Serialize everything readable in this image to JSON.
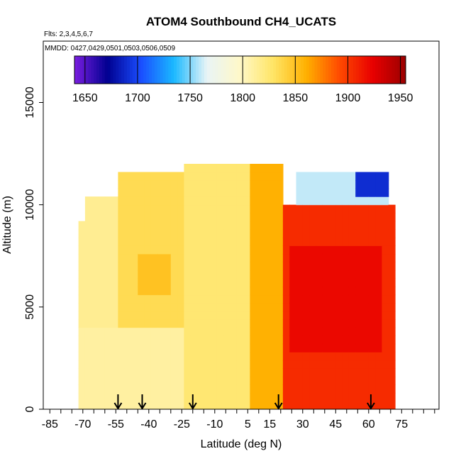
{
  "chart_data": {
    "type": "heatmap",
    "title": "ATOM4 Southbound CH4_UCATS",
    "flights_note": "Flts: 2,3,4,5,6,7",
    "dates_note": "MMDD: 0427,0429,0501,0503,0506,0509",
    "xlabel": "Latitude (deg N)",
    "ylabel": "Altitude (m)",
    "xlim": [
      -88,
      92
    ],
    "ylim": [
      0,
      18000
    ],
    "x_ticks": [
      -85,
      -70,
      -55,
      -40,
      -25,
      -10,
      5,
      15,
      30,
      45,
      60,
      75
    ],
    "y_ticks": [
      0,
      5000,
      10000,
      15000
    ],
    "colorbar": {
      "min": 1640,
      "max": 1955,
      "ticks": [
        1650,
        1700,
        1750,
        1800,
        1850,
        1900,
        1950
      ],
      "boundaries": [
        1650,
        1700,
        1750,
        1800,
        1850,
        1900,
        1950
      ],
      "colors": [
        "#7a1ee0",
        "#000090",
        "#1a4dff",
        "#1ab8ff",
        "#e9f4f6",
        "#fff8c8",
        "#ffe566",
        "#ffb000",
        "#ff4a00",
        "#e80000",
        "#9a0000"
      ]
    },
    "grid": false,
    "legend_position": "top",
    "arrows_latitude": [
      -54,
      -43,
      -20,
      19,
      61
    ],
    "regions": [
      {
        "lat_range": [
          -72,
          -25
        ],
        "alt_range": [
          0,
          4000
        ],
        "ch4": 1810
      },
      {
        "lat_range": [
          -72,
          -55
        ],
        "alt_range": [
          4000,
          10500
        ],
        "ch4": 1815
      },
      {
        "lat_range": [
          -55,
          -25
        ],
        "alt_range": [
          4000,
          11500
        ],
        "ch4": 1835
      },
      {
        "lat_range": [
          -45,
          -30
        ],
        "alt_range": [
          5500,
          7500
        ],
        "ch4": 1850
      },
      {
        "lat_range": [
          -25,
          5
        ],
        "alt_range": [
          0,
          12000
        ],
        "ch4": 1825
      },
      {
        "lat_range": [
          5,
          20
        ],
        "alt_range": [
          0,
          12000
        ],
        "ch4": 1860
      },
      {
        "lat_range": [
          20,
          72
        ],
        "alt_range": [
          0,
          10000
        ],
        "ch4": 1905
      },
      {
        "lat_range": [
          25,
          65
        ],
        "alt_range": [
          3000,
          8000
        ],
        "ch4": 1920
      },
      {
        "lat_range": [
          28,
          70
        ],
        "alt_range": [
          10000,
          11500
        ],
        "ch4": 1760
      },
      {
        "lat_range": [
          55,
          70
        ],
        "alt_range": [
          10500,
          11500
        ],
        "ch4": 1690
      }
    ]
  }
}
